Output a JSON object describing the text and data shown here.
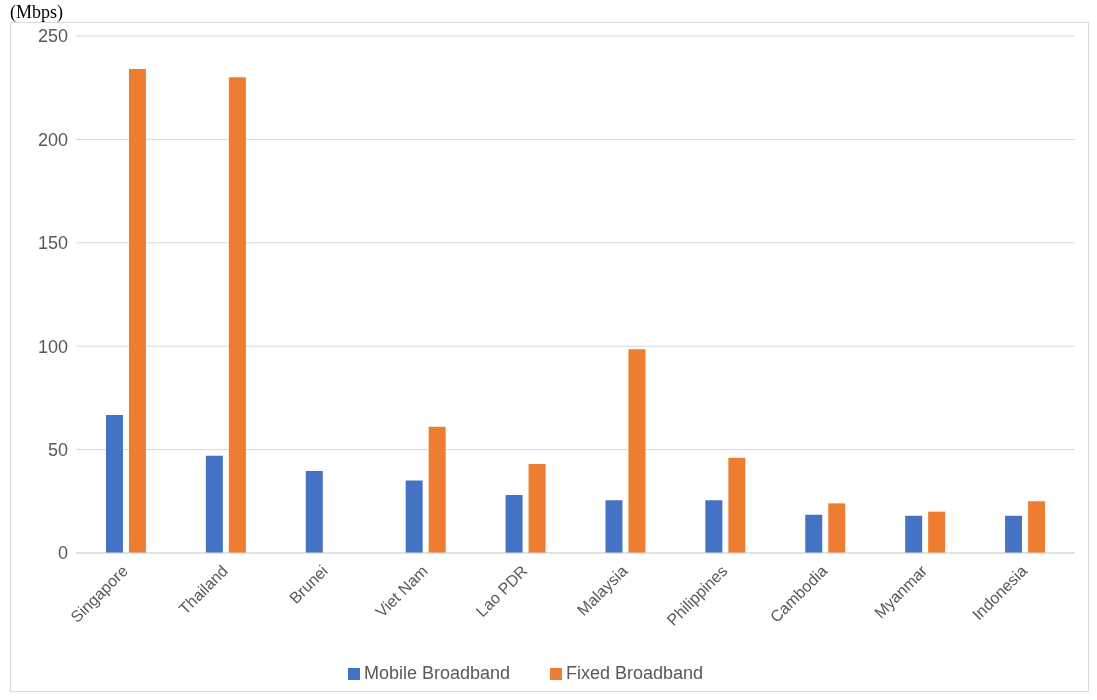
{
  "chart_data": {
    "type": "bar",
    "title": "(Mbps)",
    "categories": [
      "Singapore",
      "Thailand",
      "Brunei",
      "Viet Nam",
      "Lao PDR",
      "Malaysia",
      "Philippines",
      "Cambodia",
      "Myanmar",
      "Indonesia"
    ],
    "series": [
      {
        "name": "Mobile Broadband",
        "color": "#4472c4",
        "values": [
          66.7,
          47,
          39.6,
          35,
          28,
          25.5,
          25.5,
          18.5,
          18,
          18
        ]
      },
      {
        "name": "Fixed Broadband",
        "color": "#ed7d31",
        "values": [
          234,
          230,
          null,
          61,
          43,
          98.5,
          46,
          24,
          20,
          25
        ]
      }
    ],
    "ylim": [
      0,
      250
    ],
    "yticks": [
      0,
      50,
      100,
      150,
      200,
      250
    ],
    "grid": "y",
    "legend": "bottom"
  }
}
